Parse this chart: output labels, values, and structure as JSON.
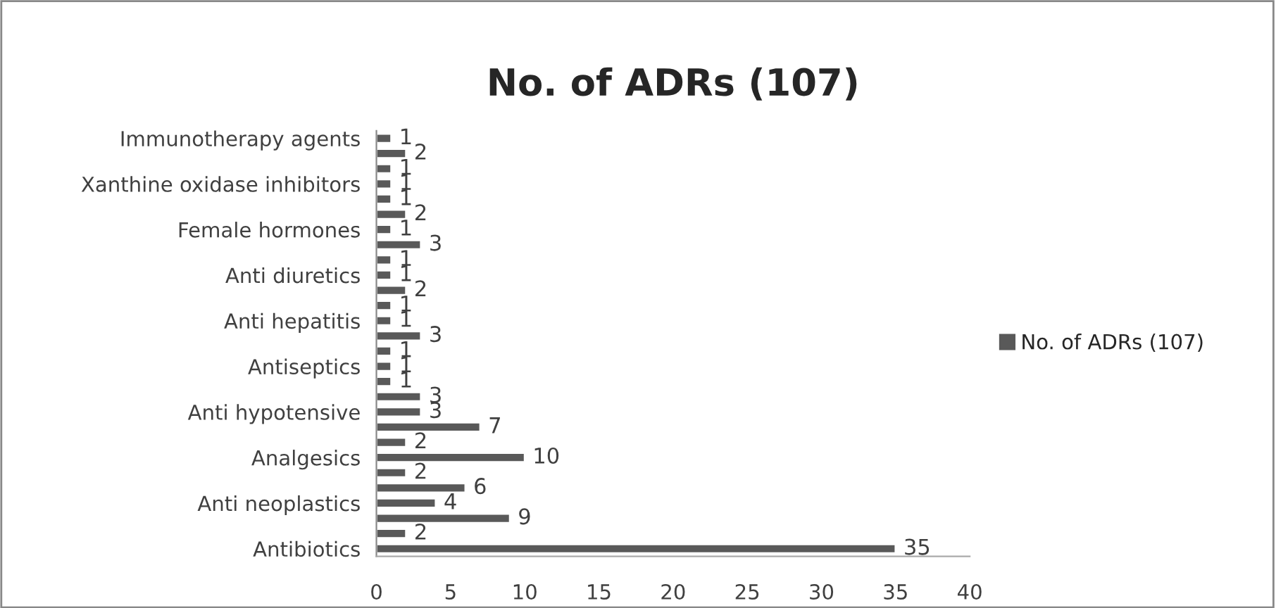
{
  "chart_data": {
    "type": "bar",
    "orientation": "horizontal",
    "title": "No. of ADRs (107)",
    "categories": [
      "Immunotherapy agents",
      null,
      null,
      "Xanthine oxidase inhibitors",
      null,
      null,
      "Female hormones",
      null,
      null,
      "Anti diuretics",
      null,
      null,
      "Anti hepatitis",
      null,
      null,
      "Antiseptics",
      null,
      null,
      "Anti hypotensive",
      null,
      null,
      "Analgesics",
      null,
      null,
      "Anti neoplastics",
      null,
      null,
      "Antibiotics"
    ],
    "series": [
      {
        "name": "No. of ADRs (107)",
        "color": "#595959",
        "values": [
          1,
          2,
          1,
          1,
          1,
          2,
          1,
          3,
          1,
          1,
          2,
          1,
          1,
          3,
          1,
          1,
          1,
          3,
          3,
          7,
          2,
          10,
          2,
          6,
          4,
          9,
          2,
          35
        ]
      }
    ],
    "xlim": [
      0,
      40
    ],
    "xticks": [
      0,
      5,
      10,
      15,
      20,
      25,
      30,
      35,
      40
    ],
    "data_labels": true,
    "grid": false,
    "legend": "right"
  }
}
